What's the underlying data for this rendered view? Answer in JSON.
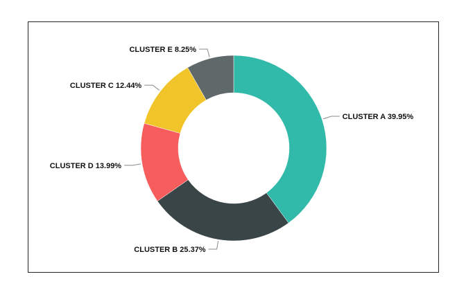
{
  "chart_data": {
    "type": "pie",
    "style": "donut",
    "slices": [
      {
        "label": "CLUSTER A",
        "value": 39.95,
        "display": "CLUSTER A 39.95%",
        "color": "#31BAAA"
      },
      {
        "label": "CLUSTER B",
        "value": 25.37,
        "display": "CLUSTER B 25.37%",
        "color": "#3A4548"
      },
      {
        "label": "CLUSTER D",
        "value": 13.99,
        "display": "CLUSTER D 13.99%",
        "color": "#F75D5C"
      },
      {
        "label": "CLUSTER C",
        "value": 12.44,
        "display": "CLUSTER C 12.44%",
        "color": "#F1C52A"
      },
      {
        "label": "CLUSTER E",
        "value": 8.25,
        "display": "CLUSTER E 8.25%",
        "color": "#5F6969"
      }
    ],
    "title": "",
    "legend": "none",
    "data_labels": "outside"
  }
}
